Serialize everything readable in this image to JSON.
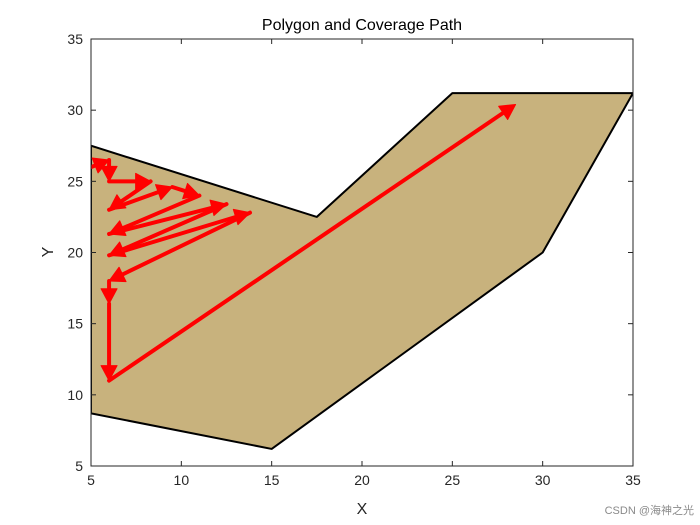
{
  "chart_data": {
    "type": "line",
    "title": "Polygon and Coverage Path",
    "xlabel": "X",
    "ylabel": "Y",
    "xlim": [
      5,
      35
    ],
    "ylim": [
      5,
      35
    ],
    "xticks": [
      5,
      10,
      15,
      20,
      25,
      30,
      35
    ],
    "yticks": [
      5,
      10,
      15,
      20,
      25,
      30,
      35
    ],
    "grid": false,
    "polygon": {
      "fill_color": "#C8B27D",
      "edge_color": "#000000",
      "vertices": [
        [
          5,
          27.5
        ],
        [
          17.5,
          22.5
        ],
        [
          25,
          31.2
        ],
        [
          35,
          31.2
        ],
        [
          30,
          20
        ],
        [
          15,
          6.2
        ],
        [
          5,
          8.7
        ]
      ]
    },
    "path": {
      "color": "#FF0000",
      "points": [
        [
          5,
          26
        ],
        [
          6,
          26.5
        ],
        [
          6,
          25
        ],
        [
          8.3,
          25
        ],
        [
          6,
          23
        ],
        [
          9.5,
          24.6
        ],
        [
          11,
          24
        ],
        [
          6,
          21.3
        ],
        [
          12.5,
          23.4
        ],
        [
          6,
          19.8
        ],
        [
          13.8,
          22.8
        ],
        [
          6,
          18
        ],
        [
          6,
          16.4
        ],
        [
          6,
          11
        ],
        [
          28.5,
          30.4
        ]
      ]
    },
    "watermark": "CSDN @海神之光"
  }
}
